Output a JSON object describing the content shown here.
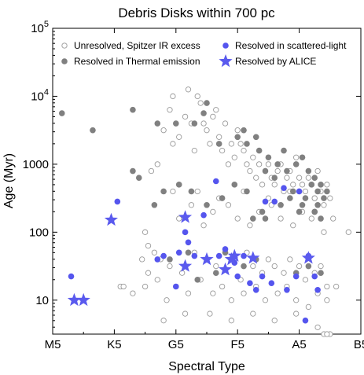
{
  "chart_data": {
    "type": "scatter",
    "title": "Debris Disks within 700 pc",
    "xlabel": "Spectral Type",
    "ylabel": "Age (Myr)",
    "xlim": [
      0,
      10
    ],
    "ylim": [
      0.5,
      5
    ],
    "y_scale": "log",
    "x_ticks": [
      {
        "label": "M5",
        "value": 0
      },
      {
        "label": "K5",
        "value": 2
      },
      {
        "label": "G5",
        "value": 4
      },
      {
        "label": "F5",
        "value": 6
      },
      {
        "label": "A5",
        "value": 8
      },
      {
        "label": "B5",
        "value": 10
      }
    ],
    "y_ticks": [
      {
        "label": "10",
        "value": 1
      },
      {
        "label": "100",
        "value": 2
      },
      {
        "label": "1000",
        "value": 3
      },
      {
        "label": "10",
        "sup": "4",
        "value": 4
      },
      {
        "label": "10",
        "sup": "5",
        "value": 5
      }
    ],
    "legend_position": "top",
    "colors": {
      "unresolved": "#9a9a9a",
      "thermal": "#808080",
      "scattered": "#5555ee",
      "alice": "#5a5aee"
    },
    "series": [
      {
        "name": "Unresolved, Spitzer IR excess",
        "marker": "open-circle",
        "x": [
          2.2,
          2.9,
          3.0,
          3.1,
          3.2,
          3.4,
          3.6,
          3.8,
          3.9,
          3.9,
          4.1,
          4.3,
          4.4,
          4.5,
          4.6,
          4.7,
          4.8,
          4.9,
          5.0,
          5.1,
          5.2,
          5.3,
          5.4,
          5.5,
          5.6,
          5.7,
          5.8,
          5.9,
          6.0,
          6.1,
          6.2,
          6.3,
          6.4,
          6.5,
          6.6,
          6.7,
          6.8,
          6.9,
          7.0,
          7.1,
          7.2,
          7.3,
          7.4,
          7.5,
          7.6,
          7.7,
          7.8,
          7.9,
          8.0,
          8.1,
          8.2,
          8.3,
          8.4,
          8.5,
          8.6,
          8.7,
          8.8,
          8.9,
          9.0,
          9.1,
          3.3,
          3.5,
          3.8,
          4.2,
          4.6,
          5.0,
          5.3,
          5.6,
          5.9,
          6.1,
          6.3,
          6.5,
          6.8,
          7.0,
          7.2,
          7.5,
          7.7,
          8.0,
          8.2,
          8.5,
          8.7,
          8.9,
          2.3,
          2.6,
          3.1,
          3.4,
          3.7,
          4.0,
          4.4,
          4.8,
          5.2,
          5.5,
          5.8,
          6.2,
          6.6,
          6.9,
          7.3,
          7.6,
          7.9,
          8.3,
          8.6,
          8.9,
          9.2,
          4.1,
          4.5,
          4.9,
          5.2,
          5.7,
          6.0,
          6.4,
          6.7,
          7.1,
          7.4,
          7.8,
          8.1,
          8.4,
          8.8,
          3.6,
          4.3,
          5.1,
          5.8,
          6.5,
          7.2,
          7.9,
          8.6,
          9.0,
          3.0,
          3.9,
          4.7,
          5.4,
          6.2,
          7.0,
          7.7,
          8.5,
          9.6,
          8.8,
          8.9
        ],
        "y": [
          1.2,
          1.6,
          1.2,
          1.8,
          2.9,
          3.0,
          3.5,
          3.8,
          4.0,
          3.3,
          3.4,
          3.7,
          4.1,
          3.6,
          3.2,
          4.0,
          3.9,
          3.6,
          3.5,
          3.3,
          3.7,
          3.8,
          3.4,
          3.2,
          3.6,
          3.0,
          3.3,
          3.1,
          3.5,
          3.3,
          3.2,
          3.0,
          2.9,
          3.1,
          2.8,
          3.0,
          2.7,
          2.9,
          3.0,
          2.8,
          2.7,
          2.9,
          3.0,
          2.6,
          2.8,
          2.9,
          2.7,
          3.1,
          2.8,
          2.7,
          2.6,
          2.8,
          2.7,
          2.5,
          2.9,
          2.6,
          2.4,
          2.7,
          2.5,
          2.2,
          1.7,
          1.6,
          1.5,
          1.4,
          1.7,
          1.6,
          1.5,
          1.7,
          1.6,
          1.3,
          1.7,
          1.5,
          1.4,
          1.6,
          1.5,
          1.4,
          1.6,
          1.5,
          1.3,
          1.4,
          1.5,
          1.2,
          1.2,
          1.1,
          1.4,
          1.3,
          1.0,
          1.2,
          1.1,
          1.3,
          1.1,
          1.2,
          1.0,
          1.1,
          1.2,
          1.0,
          1.1,
          1.2,
          1.0,
          0.9,
          1.1,
          1.0,
          1.2,
          2.2,
          2.4,
          2.1,
          2.3,
          2.4,
          2.2,
          2.1,
          2.3,
          2.4,
          2.2,
          2.1,
          2.3,
          2.2,
          2.0,
          0.7,
          0.8,
          0.8,
          0.7,
          0.8,
          0.7,
          0.8,
          0.6,
          0.5,
          2.0,
          2.6,
          2.6,
          2.5,
          2.6,
          2.5,
          2.6,
          2.5,
          2.0,
          0.5,
          0.5
        ]
      },
      {
        "name": "Resolved in Thermal emission",
        "marker": "filled-circle",
        "x": [
          0.3,
          1.3,
          2.6,
          2.8,
          2.6,
          3.4,
          4.0,
          4.6,
          4.9,
          5.0,
          5.4,
          6.0,
          6.2,
          6.3,
          6.6,
          6.7,
          7.0,
          7.3,
          7.5,
          7.6,
          7.9,
          8.1,
          8.3,
          8.4,
          8.5,
          8.6,
          8.7,
          8.8,
          8.9,
          8.5,
          8.2,
          7.8,
          7.2,
          6.9,
          6.3,
          5.9,
          5.5,
          5.0,
          4.5,
          4.1,
          3.6,
          3.3,
          6.8,
          7.4,
          8.0,
          8.5,
          8.7,
          6.5,
          6.9,
          7.7,
          8.1,
          8.6,
          3.8,
          4.4,
          5.0,
          5.6,
          6.2,
          6.6,
          7.9,
          8.3,
          8.7,
          4.7,
          5.3
        ],
        "y": [
          3.75,
          3.5,
          2.9,
          2.8,
          3.8,
          3.6,
          3.6,
          3.6,
          3.75,
          3.9,
          3.3,
          3.4,
          3.5,
          3.3,
          3.4,
          3.2,
          3.1,
          3.0,
          3.2,
          2.9,
          3.0,
          3.1,
          2.9,
          2.7,
          2.8,
          2.6,
          2.7,
          2.5,
          2.6,
          2.3,
          2.5,
          2.6,
          2.8,
          2.9,
          2.6,
          2.7,
          2.5,
          2.4,
          2.6,
          2.7,
          2.6,
          2.4,
          2.3,
          2.4,
          2.3,
          2.3,
          2.2,
          2.2,
          2.2,
          2.5,
          2.4,
          2.4,
          1.6,
          1.7,
          1.6,
          1.7,
          1.5,
          1.6,
          1.4,
          1.5,
          1.4,
          1.3,
          1.4
        ]
      },
      {
        "name": "Resolved in scattered-light",
        "marker": "filled-circle",
        "x": [
          0.6,
          2.1,
          3.4,
          3.6,
          4.1,
          4.4,
          4.6,
          5.4,
          5.6,
          5.3,
          6.0,
          6.4,
          6.6,
          6.8,
          7.1,
          7.6,
          7.9,
          8.3,
          8.5,
          8.6,
          8.2,
          7.5,
          7.2,
          6.9,
          6.2,
          5.9,
          4.9,
          4.3,
          4.0,
          8.0
        ],
        "y": [
          1.35,
          2.45,
          1.6,
          1.65,
          1.7,
          1.85,
          1.65,
          1.65,
          1.75,
          2.75,
          1.35,
          1.25,
          1.15,
          1.35,
          1.25,
          1.15,
          1.35,
          1.65,
          1.35,
          1.15,
          0.7,
          2.65,
          2.45,
          2.45,
          1.65,
          1.55,
          2.25,
          2.0,
          1.2,
          2.6
        ]
      },
      {
        "name": "Resolved by ALICE",
        "marker": "star",
        "x": [
          0.7,
          1.0,
          1.9,
          4.3,
          4.3,
          5.0,
          5.6,
          5.8,
          5.9,
          6.5,
          8.3
        ],
        "y": [
          1.0,
          1.0,
          2.18,
          2.22,
          1.5,
          1.6,
          1.45,
          1.6,
          1.65,
          1.62,
          1.62
        ]
      }
    ]
  }
}
